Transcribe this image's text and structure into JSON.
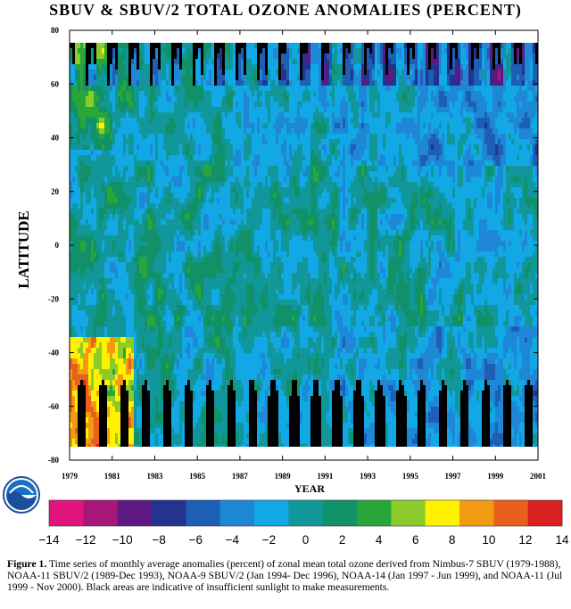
{
  "title": "SBUV & SBUV/2 TOTAL OZONE ANOMALIES (PERCENT)",
  "chart_data": {
    "type": "heatmap",
    "title": "SBUV & SBUV/2 TOTAL OZONE ANOMALIES (PERCENT)",
    "xlabel": "YEAR",
    "ylabel": "LATITUDE",
    "xlim": [
      1979,
      2001
    ],
    "ylim": [
      -80,
      80
    ],
    "x_ticks": [
      "1979",
      "1981",
      "1983",
      "1985",
      "1987",
      "1989",
      "1991",
      "1993",
      "1995",
      "1997",
      "1999",
      "2001"
    ],
    "y_ticks": [
      "-80",
      "-60",
      "-40",
      "-20",
      "0",
      "20",
      "40",
      "60",
      "80"
    ],
    "colorbar": {
      "ticks": [
        "-14",
        "-12",
        "-10",
        "-8",
        "-6",
        "-4",
        "-2",
        "0",
        "2",
        "4",
        "6",
        "8",
        "10",
        "12",
        "14"
      ],
      "colors": [
        "#e0157c",
        "#a8187a",
        "#5e1a82",
        "#23338e",
        "#1d5fb5",
        "#1f88d6",
        "#12a8e6",
        "#11979a",
        "#119168",
        "#28a63a",
        "#8ccb2c",
        "#fff200",
        "#f29b12",
        "#e8601b",
        "#d92121"
      ]
    },
    "no_data_color": "#000000"
  },
  "caption": {
    "label": "Figure 1.",
    "text": "Time series of monthly average anomalies (percent) of zonal mean total ozone derived from Nimbus-7 SBUV (1979-1988), NOAA-11 SBUV/2 (1989-Dec 1993), NOAA-9 SBUV/2 (Jan 1994- Dec 1996), NOAA-14 (Jan 1997 - Jun 1999), and NOAA-11 (Jul 1999 - Nov 2000). Black areas are indicative of insufficient sunlight to make measurements."
  },
  "logo": {
    "text": "NOAA"
  }
}
